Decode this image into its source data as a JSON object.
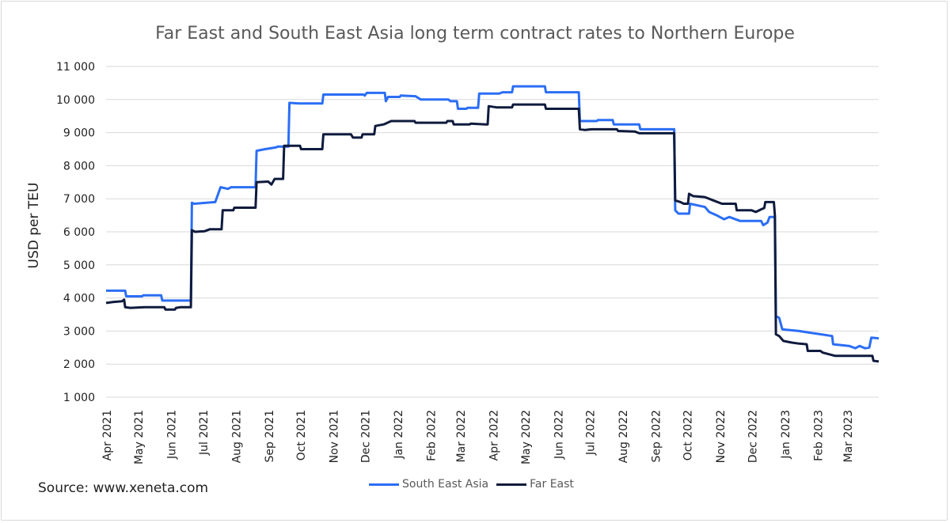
{
  "chart_data": {
    "type": "line",
    "title": "Far East and South East Asia long term contract rates to Northern Europe",
    "xlabel": "",
    "ylabel": "USD per TEU",
    "ylim": [
      1000,
      11000
    ],
    "yticks": [
      1000,
      2000,
      3000,
      4000,
      5000,
      6000,
      7000,
      8000,
      9000,
      10000,
      11000
    ],
    "ytick_labels": [
      "1 000",
      "2 000",
      "3 000",
      "4 000",
      "5 000",
      "6 000",
      "7 000",
      "8 000",
      "9 000",
      "10 000",
      "11 000"
    ],
    "x_tick_labels": [
      "Apr 2021",
      "May 2021",
      "Jun 2021",
      "Jul 2021",
      "Aug 2021",
      "Sep 2021",
      "Oct 2021",
      "Nov 2021",
      "Dec 2021",
      "Jan 2022",
      "Feb 2022",
      "Mar 2022",
      "Apr 2022",
      "May 2022",
      "Jun 2022",
      "Jul 2022",
      "Aug 2022",
      "Sep 2022",
      "Oct 2022",
      "Nov 2022",
      "Dec 2022",
      "Jan 2023",
      "Feb 2023",
      "Mar 2023"
    ],
    "xlim": [
      "2021-04-01",
      "2023-03-31"
    ],
    "grid": true,
    "legend_position": "bottom",
    "series": [
      {
        "name": "South East Asia",
        "color": "#2b6ef5",
        "points": [
          [
            "2021-04-01",
            4220
          ],
          [
            "2021-04-19",
            4220
          ],
          [
            "2021-04-20",
            4050
          ],
          [
            "2021-05-05",
            4050
          ],
          [
            "2021-05-06",
            4080
          ],
          [
            "2021-05-23",
            4080
          ],
          [
            "2021-05-24",
            3920
          ],
          [
            "2021-06-20",
            3920
          ],
          [
            "2021-06-21",
            6880
          ],
          [
            "2021-06-23",
            6850
          ],
          [
            "2021-07-13",
            6900
          ],
          [
            "2021-07-18",
            7350
          ],
          [
            "2021-07-25",
            7300
          ],
          [
            "2021-07-28",
            7350
          ],
          [
            "2021-08-20",
            7350
          ],
          [
            "2021-08-21",
            8450
          ],
          [
            "2021-08-29",
            8500
          ],
          [
            "2021-09-08",
            8550
          ],
          [
            "2021-09-10",
            8580
          ],
          [
            "2021-09-20",
            8580
          ],
          [
            "2021-09-21",
            9900
          ],
          [
            "2021-09-30",
            9880
          ],
          [
            "2021-10-22",
            9880
          ],
          [
            "2021-10-23",
            10150
          ],
          [
            "2021-11-30",
            10150
          ],
          [
            "2021-12-01",
            10120
          ],
          [
            "2021-12-03",
            10200
          ],
          [
            "2021-12-20",
            10200
          ],
          [
            "2021-12-21",
            9950
          ],
          [
            "2021-12-23",
            10080
          ],
          [
            "2022-01-03",
            10080
          ],
          [
            "2022-01-04",
            10120
          ],
          [
            "2022-01-18",
            10100
          ],
          [
            "2022-01-23",
            10000
          ],
          [
            "2022-02-18",
            10000
          ],
          [
            "2022-02-20",
            9950
          ],
          [
            "2022-02-26",
            9950
          ],
          [
            "2022-02-27",
            9720
          ],
          [
            "2022-03-07",
            9720
          ],
          [
            "2022-03-08",
            9750
          ],
          [
            "2022-03-18",
            9750
          ],
          [
            "2022-03-19",
            10180
          ],
          [
            "2022-04-07",
            10180
          ],
          [
            "2022-04-10",
            10220
          ],
          [
            "2022-04-19",
            10220
          ],
          [
            "2022-04-20",
            10400
          ],
          [
            "2022-05-20",
            10400
          ],
          [
            "2022-05-21",
            10220
          ],
          [
            "2022-06-21",
            10220
          ],
          [
            "2022-06-22",
            9350
          ],
          [
            "2022-07-08",
            9350
          ],
          [
            "2022-07-09",
            9380
          ],
          [
            "2022-07-23",
            9380
          ],
          [
            "2022-07-24",
            9250
          ],
          [
            "2022-08-17",
            9250
          ],
          [
            "2022-08-18",
            9100
          ],
          [
            "2022-09-19",
            9100
          ],
          [
            "2022-09-20",
            6650
          ],
          [
            "2022-09-23",
            6550
          ],
          [
            "2022-10-03",
            6550
          ],
          [
            "2022-10-04",
            6850
          ],
          [
            "2022-10-18",
            6750
          ],
          [
            "2022-10-22",
            6600
          ],
          [
            "2022-10-29",
            6500
          ],
          [
            "2022-11-05",
            6380
          ],
          [
            "2022-11-10",
            6450
          ],
          [
            "2022-11-20",
            6330
          ],
          [
            "2022-12-10",
            6330
          ],
          [
            "2022-12-12",
            6200
          ],
          [
            "2022-12-16",
            6280
          ],
          [
            "2022-12-18",
            6450
          ],
          [
            "2022-12-23",
            6450
          ],
          [
            "2022-12-24",
            3450
          ],
          [
            "2022-12-27",
            3400
          ],
          [
            "2022-12-30",
            3050
          ],
          [
            "2023-01-15",
            3000
          ],
          [
            "2023-01-25",
            2950
          ],
          [
            "2023-02-05",
            2900
          ],
          [
            "2023-02-15",
            2850
          ],
          [
            "2023-02-16",
            2600
          ],
          [
            "2023-03-03",
            2550
          ],
          [
            "2023-03-09",
            2480
          ],
          [
            "2023-03-13",
            2550
          ],
          [
            "2023-03-18",
            2480
          ],
          [
            "2023-03-22",
            2500
          ],
          [
            "2023-03-24",
            2800
          ],
          [
            "2023-03-31",
            2780
          ]
        ]
      },
      {
        "name": "Far East",
        "color": "#0f1b3d",
        "points": [
          [
            "2021-04-01",
            3850
          ],
          [
            "2021-04-08",
            3880
          ],
          [
            "2021-04-16",
            3900
          ],
          [
            "2021-04-18",
            3950
          ],
          [
            "2021-04-19",
            3720
          ],
          [
            "2021-04-24",
            3700
          ],
          [
            "2021-05-07",
            3720
          ],
          [
            "2021-05-26",
            3720
          ],
          [
            "2021-05-27",
            3650
          ],
          [
            "2021-06-05",
            3650
          ],
          [
            "2021-06-06",
            3700
          ],
          [
            "2021-06-10",
            3720
          ],
          [
            "2021-06-20",
            3720
          ],
          [
            "2021-06-21",
            6050
          ],
          [
            "2021-06-24",
            6000
          ],
          [
            "2021-07-03",
            6020
          ],
          [
            "2021-07-08",
            6080
          ],
          [
            "2021-07-19",
            6080
          ],
          [
            "2021-07-20",
            6650
          ],
          [
            "2021-07-30",
            6650
          ],
          [
            "2021-07-31",
            6730
          ],
          [
            "2021-08-20",
            6730
          ],
          [
            "2021-08-21",
            7500
          ],
          [
            "2021-09-01",
            7520
          ],
          [
            "2021-09-04",
            7430
          ],
          [
            "2021-09-07",
            7600
          ],
          [
            "2021-09-15",
            7600
          ],
          [
            "2021-09-16",
            8600
          ],
          [
            "2021-10-01",
            8600
          ],
          [
            "2021-10-02",
            8500
          ],
          [
            "2021-10-22",
            8500
          ],
          [
            "2021-10-23",
            8950
          ],
          [
            "2021-11-18",
            8950
          ],
          [
            "2021-11-20",
            8850
          ],
          [
            "2021-11-28",
            8850
          ],
          [
            "2021-11-29",
            8950
          ],
          [
            "2021-12-10",
            8950
          ],
          [
            "2021-12-11",
            9200
          ],
          [
            "2021-12-19",
            9250
          ],
          [
            "2021-12-26",
            9350
          ],
          [
            "2022-01-17",
            9350
          ],
          [
            "2022-01-18",
            9300
          ],
          [
            "2022-02-16",
            9300
          ],
          [
            "2022-02-17",
            9350
          ],
          [
            "2022-02-22",
            9350
          ],
          [
            "2022-02-23",
            9250
          ],
          [
            "2022-03-10",
            9250
          ],
          [
            "2022-03-11",
            9270
          ],
          [
            "2022-03-25",
            9250
          ],
          [
            "2022-03-27",
            9250
          ],
          [
            "2022-03-28",
            9800
          ],
          [
            "2022-04-05",
            9760
          ],
          [
            "2022-04-19",
            9760
          ],
          [
            "2022-04-20",
            9850
          ],
          [
            "2022-05-20",
            9850
          ],
          [
            "2022-05-21",
            9720
          ],
          [
            "2022-06-21",
            9720
          ],
          [
            "2022-06-22",
            9100
          ],
          [
            "2022-06-27",
            9080
          ],
          [
            "2022-07-03",
            9100
          ],
          [
            "2022-07-27",
            9100
          ],
          [
            "2022-07-28",
            9050
          ],
          [
            "2022-08-13",
            9030
          ],
          [
            "2022-08-17",
            8980
          ],
          [
            "2022-09-19",
            8980
          ],
          [
            "2022-09-20",
            6950
          ],
          [
            "2022-09-25",
            6900
          ],
          [
            "2022-09-28",
            6850
          ],
          [
            "2022-10-02",
            6850
          ],
          [
            "2022-10-03",
            7150
          ],
          [
            "2022-10-07",
            7080
          ],
          [
            "2022-10-18",
            7050
          ],
          [
            "2022-10-26",
            6950
          ],
          [
            "2022-11-03",
            6850
          ],
          [
            "2022-11-16",
            6850
          ],
          [
            "2022-11-17",
            6650
          ],
          [
            "2022-12-01",
            6650
          ],
          [
            "2022-12-05",
            6600
          ],
          [
            "2022-12-10",
            6680
          ],
          [
            "2022-12-13",
            6720
          ],
          [
            "2022-12-14",
            6900
          ],
          [
            "2022-12-22",
            6900
          ],
          [
            "2022-12-23",
            6500
          ],
          [
            "2022-12-24",
            2900
          ],
          [
            "2022-12-27",
            2850
          ],
          [
            "2022-12-31",
            2700
          ],
          [
            "2023-01-08",
            2650
          ],
          [
            "2023-01-15",
            2620
          ],
          [
            "2023-01-22",
            2600
          ],
          [
            "2023-01-23",
            2400
          ],
          [
            "2023-02-04",
            2400
          ],
          [
            "2023-02-06",
            2350
          ],
          [
            "2023-02-12",
            2300
          ],
          [
            "2023-02-18",
            2250
          ],
          [
            "2023-03-25",
            2250
          ],
          [
            "2023-03-26",
            2100
          ],
          [
            "2023-03-31",
            2080
          ]
        ]
      }
    ]
  },
  "source_text": "Source: www.xeneta.com"
}
